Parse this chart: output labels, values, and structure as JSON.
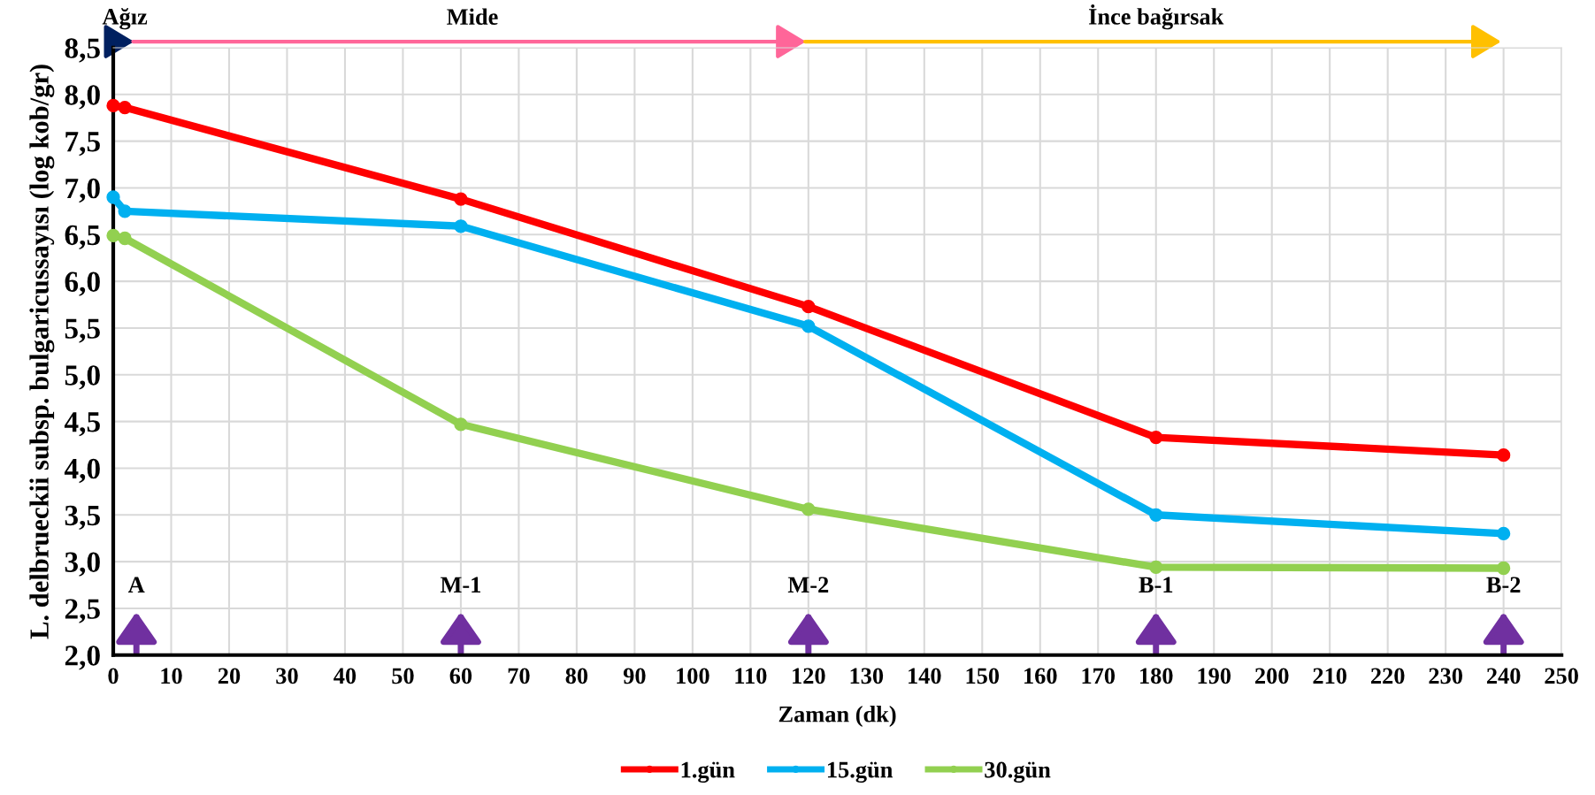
{
  "chart_data": {
    "type": "line",
    "xlabel": "Zaman (dk)",
    "ylabel": "L. delbrueckii subsp. bulgaricussayısı (log kob/gr)",
    "x": [
      0,
      2,
      60,
      120,
      180,
      240
    ],
    "series": [
      {
        "name": "1.gün",
        "color": "#ff0000",
        "values": [
          7.88,
          7.86,
          6.88,
          5.73,
          4.33,
          4.14
        ]
      },
      {
        "name": "15.gün",
        "color": "#00b0f0",
        "values": [
          6.9,
          6.75,
          6.59,
          5.52,
          3.5,
          3.3
        ]
      },
      {
        "name": "30.gün",
        "color": "#92d050",
        "values": [
          6.49,
          6.46,
          4.47,
          3.56,
          2.94,
          2.93
        ]
      }
    ],
    "xlim": [
      0,
      250
    ],
    "xticks": [
      0,
      10,
      20,
      30,
      40,
      50,
      60,
      70,
      80,
      90,
      100,
      110,
      120,
      130,
      140,
      150,
      160,
      170,
      180,
      190,
      200,
      210,
      220,
      230,
      240,
      250
    ],
    "ylim": [
      2.0,
      8.5
    ],
    "yticks": [
      {
        "value": 2.0,
        "label": "2,0"
      },
      {
        "value": 2.5,
        "label": "2,5"
      },
      {
        "value": 3.0,
        "label": "3,0"
      },
      {
        "value": 3.5,
        "label": "3,5"
      },
      {
        "value": 4.0,
        "label": "4,0"
      },
      {
        "value": 4.5,
        "label": "4,5"
      },
      {
        "value": 5.0,
        "label": "5,0"
      },
      {
        "value": 5.5,
        "label": "5,5"
      },
      {
        "value": 6.0,
        "label": "6,0"
      },
      {
        "value": 6.5,
        "label": "6,5"
      },
      {
        "value": 7.0,
        "label": "7,0"
      },
      {
        "value": 7.5,
        "label": "7,5"
      },
      {
        "value": 8.0,
        "label": "8,0"
      },
      {
        "value": 8.5,
        "label": "8,5"
      }
    ],
    "annotations": [
      "Ağız",
      "Mide",
      "İnce bağırsak",
      "A",
      "M-1",
      "M-2",
      "B-1",
      "B-2"
    ],
    "grid": true,
    "legend": "bottom",
    "marker": "circle",
    "line_style": "solid"
  }
}
